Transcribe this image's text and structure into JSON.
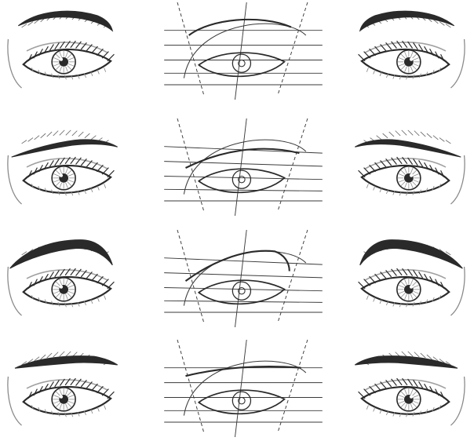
{
  "sheet": {
    "background": "#ffffff",
    "ink": "#2a2a2a",
    "shade": "#8a8a8a",
    "guide": "#3a3a3a"
  },
  "rows": [
    {
      "brow": "arched"
    },
    {
      "brow": "rising"
    },
    {
      "brow": "bold-arched"
    },
    {
      "brow": "straight"
    }
  ]
}
